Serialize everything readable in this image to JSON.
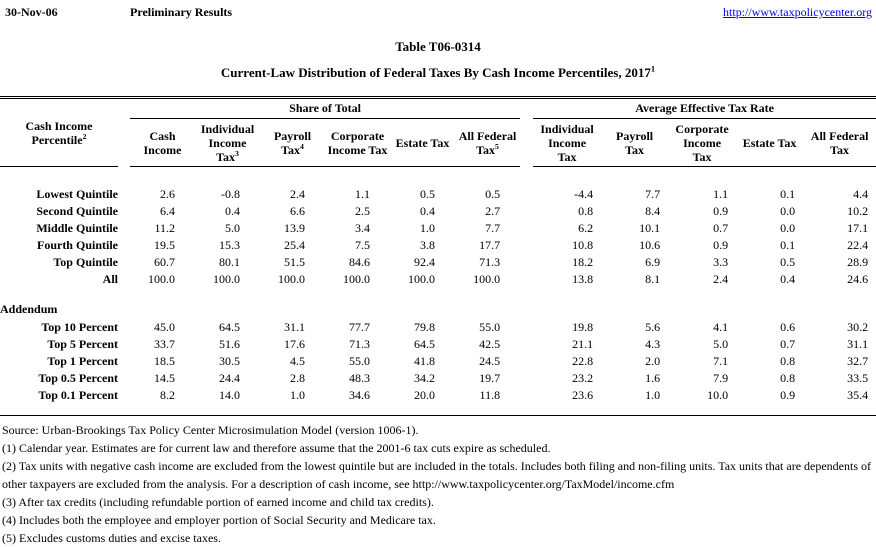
{
  "page": {
    "date": "30-Nov-06",
    "status": "Preliminary Results",
    "url": "http://www.taxpolicycenter.org"
  },
  "title": {
    "line1": "Table T06-0314",
    "line2": "Current-Law Distribution of Federal Taxes By Cash Income Percentiles, 2017",
    "line2_sup": "1"
  },
  "table": {
    "row_header": {
      "text": "Cash Income\nPercentile",
      "sup": "2"
    },
    "groups": [
      {
        "label": "Share of Total",
        "columns": [
          {
            "label": "Cash\nIncome",
            "sup": ""
          },
          {
            "label": "Individual\nIncome\nTax",
            "sup": "3"
          },
          {
            "label": "Payroll\nTax",
            "sup": "4"
          },
          {
            "label": "Corporate\nIncome Tax",
            "sup": ""
          },
          {
            "label": "Estate Tax",
            "sup": ""
          },
          {
            "label": "All Federal\nTax",
            "sup": "5"
          }
        ]
      },
      {
        "label": "Average Effective Tax Rate",
        "columns": [
          {
            "label": "Individual\nIncome\nTax",
            "sup": ""
          },
          {
            "label": "Payroll\nTax",
            "sup": ""
          },
          {
            "label": "Corporate\nIncome\nTax",
            "sup": ""
          },
          {
            "label": "Estate Tax",
            "sup": ""
          },
          {
            "label": "All Federal\nTax",
            "sup": ""
          }
        ]
      }
    ],
    "rows": [
      {
        "label": "Lowest Quintile",
        "share": [
          "2.6",
          "-0.8",
          "2.4",
          "1.1",
          "0.5",
          "0.5"
        ],
        "aetr": [
          "-4.4",
          "7.7",
          "1.1",
          "0.1",
          "4.4"
        ]
      },
      {
        "label": "Second Quintile",
        "share": [
          "6.4",
          "0.4",
          "6.6",
          "2.5",
          "0.4",
          "2.7"
        ],
        "aetr": [
          "0.8",
          "8.4",
          "0.9",
          "0.0",
          "10.2"
        ]
      },
      {
        "label": "Middle Quintile",
        "share": [
          "11.2",
          "5.0",
          "13.9",
          "3.4",
          "1.0",
          "7.7"
        ],
        "aetr": [
          "6.2",
          "10.1",
          "0.7",
          "0.0",
          "17.1"
        ]
      },
      {
        "label": "Fourth Quintile",
        "share": [
          "19.5",
          "15.3",
          "25.4",
          "7.5",
          "3.8",
          "17.7"
        ],
        "aetr": [
          "10.8",
          "10.6",
          "0.9",
          "0.1",
          "22.4"
        ]
      },
      {
        "label": "Top Quintile",
        "share": [
          "60.7",
          "80.1",
          "51.5",
          "84.6",
          "92.4",
          "71.3"
        ],
        "aetr": [
          "18.2",
          "6.9",
          "3.3",
          "0.5",
          "28.9"
        ]
      },
      {
        "label": "All",
        "share": [
          "100.0",
          "100.0",
          "100.0",
          "100.0",
          "100.0",
          "100.0"
        ],
        "aetr": [
          "13.8",
          "8.1",
          "2.4",
          "0.4",
          "24.6"
        ]
      }
    ],
    "section_label": "Addendum",
    "addendum_rows": [
      {
        "label": "Top 10 Percent",
        "share": [
          "45.0",
          "64.5",
          "31.1",
          "77.7",
          "79.8",
          "55.0"
        ],
        "aetr": [
          "19.8",
          "5.6",
          "4.1",
          "0.6",
          "30.2"
        ]
      },
      {
        "label": "Top 5 Percent",
        "share": [
          "33.7",
          "51.6",
          "17.6",
          "71.3",
          "64.5",
          "42.5"
        ],
        "aetr": [
          "21.1",
          "4.3",
          "5.0",
          "0.7",
          "31.1"
        ]
      },
      {
        "label": "Top 1 Percent",
        "share": [
          "18.5",
          "30.5",
          "4.5",
          "55.0",
          "41.8",
          "24.5"
        ],
        "aetr": [
          "22.8",
          "2.0",
          "7.1",
          "0.8",
          "32.7"
        ]
      },
      {
        "label": "Top 0.5 Percent",
        "share": [
          "14.5",
          "24.4",
          "2.8",
          "48.3",
          "34.2",
          "19.7"
        ],
        "aetr": [
          "23.2",
          "1.6",
          "7.9",
          "0.8",
          "33.5"
        ]
      },
      {
        "label": "Top 0.1 Percent",
        "share": [
          "8.2",
          "14.0",
          "1.0",
          "34.6",
          "20.0",
          "11.8"
        ],
        "aetr": [
          "23.6",
          "1.0",
          "10.0",
          "0.9",
          "35.4"
        ]
      }
    ]
  },
  "footnotes": [
    "Source: Urban-Brookings Tax Policy Center Microsimulation Model (version 1006-1).",
    "(1) Calendar year.  Estimates are for current law and therefore assume that the 2001-6 tax cuts expire as scheduled.",
    "(2) Tax units with negative cash income are excluded from the lowest quintile but are included in the totals. Includes both filing and non-filing units. Tax units that are dependents of other taxpayers are excluded from the analysis. For a description of cash income, see http://www.taxpolicycenter.org/TaxModel/income.cfm",
    "(3) After tax credits (including refundable portion of earned income and child tax credits).",
    "(4) Includes both the employee and employer portion of Social Security and Medicare tax.",
    "(5) Excludes customs duties and excise taxes."
  ],
  "colors": {
    "link": "#0000ee",
    "text": "#000000",
    "background": "#ffffff"
  }
}
